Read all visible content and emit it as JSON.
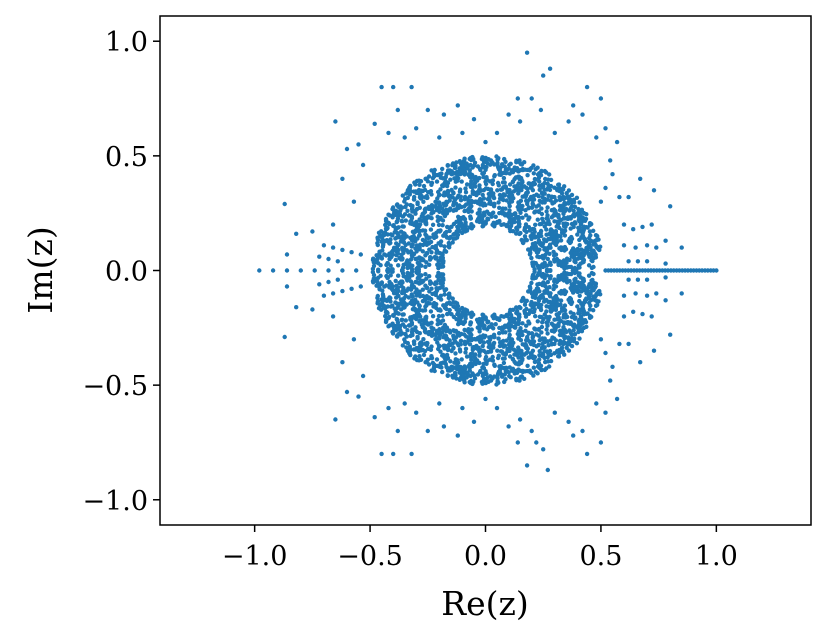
{
  "chart_data": {
    "type": "scatter",
    "title": "",
    "xlabel": "Re(z)",
    "ylabel": "Im(z)",
    "xlim": [
      -1.41,
      1.41
    ],
    "ylim": [
      -1.11,
      1.11
    ],
    "xticks": [
      -1.0,
      -0.5,
      0.0,
      0.5,
      1.0
    ],
    "xtick_labels": [
      "−1.0",
      "−0.5",
      "0.0",
      "0.5",
      "1.0"
    ],
    "yticks": [
      -1.0,
      -0.5,
      0.0,
      0.5,
      1.0
    ],
    "ytick_labels": [
      "−1.0",
      "−0.5",
      "0.0",
      "0.5",
      "1.0"
    ],
    "grid": false,
    "legend": "none",
    "marker_color": "#1f77b4",
    "point_groups": {
      "positive_real_axis": {
        "description_values": "points on Im(z)=0 from Re(z)=0.52 to 1.0",
        "x_start": 0.52,
        "x_end": 1.0,
        "count": 40,
        "y": 0.0
      }
    },
    "series": [
      {
        "points": [
          [
            -0.98,
            0.0
          ],
          [
            -0.92,
            0.0
          ],
          [
            -0.86,
            0.0
          ],
          [
            -0.8,
            0.0
          ],
          [
            -0.74,
            0.0
          ],
          [
            -0.68,
            0.0
          ],
          [
            -0.62,
            0.0
          ],
          [
            -0.56,
            0.0
          ],
          [
            -0.87,
            0.29
          ],
          [
            -0.87,
            -0.29
          ],
          [
            -0.82,
            0.16
          ],
          [
            -0.82,
            -0.16
          ],
          [
            -0.86,
            0.07
          ],
          [
            -0.86,
            -0.07
          ],
          [
            -0.7,
            0.11
          ],
          [
            -0.7,
            -0.11
          ],
          [
            -0.66,
            0.1
          ],
          [
            -0.66,
            -0.1
          ],
          [
            -0.62,
            0.09
          ],
          [
            -0.62,
            -0.09
          ],
          [
            -0.58,
            0.08
          ],
          [
            -0.58,
            -0.08
          ],
          [
            -0.54,
            0.07
          ],
          [
            -0.54,
            -0.07
          ],
          [
            -0.72,
            0.06
          ],
          [
            -0.72,
            -0.06
          ],
          [
            -0.68,
            0.05
          ],
          [
            -0.68,
            -0.05
          ],
          [
            -0.64,
            0.04
          ],
          [
            -0.64,
            -0.04
          ],
          [
            -0.75,
            0.17
          ],
          [
            -0.75,
            -0.17
          ],
          [
            -0.66,
            0.2
          ],
          [
            -0.66,
            -0.2
          ],
          [
            -0.65,
            0.65
          ],
          [
            -0.65,
            -0.65
          ],
          [
            -0.6,
            0.53
          ],
          [
            -0.6,
            -0.53
          ],
          [
            -0.62,
            0.4
          ],
          [
            -0.62,
            -0.4
          ],
          [
            -0.55,
            0.55
          ],
          [
            -0.55,
            -0.55
          ],
          [
            -0.53,
            0.46
          ],
          [
            -0.53,
            -0.46
          ],
          [
            -0.57,
            0.3
          ],
          [
            -0.57,
            -0.3
          ],
          [
            -0.48,
            0.64
          ],
          [
            -0.48,
            -0.64
          ],
          [
            -0.45,
            0.8
          ],
          [
            -0.45,
            -0.8
          ],
          [
            -0.4,
            0.8
          ],
          [
            -0.4,
            -0.8
          ],
          [
            -0.32,
            0.8
          ],
          [
            -0.32,
            -0.8
          ],
          [
            -0.38,
            0.7
          ],
          [
            -0.38,
            -0.7
          ],
          [
            -0.42,
            0.6
          ],
          [
            -0.42,
            -0.6
          ],
          [
            -0.3,
            0.62
          ],
          [
            -0.3,
            -0.62
          ],
          [
            -0.35,
            0.58
          ],
          [
            -0.35,
            -0.58
          ],
          [
            -0.25,
            0.7
          ],
          [
            -0.25,
            -0.7
          ],
          [
            -0.18,
            0.68
          ],
          [
            -0.18,
            -0.68
          ],
          [
            -0.12,
            0.72
          ],
          [
            -0.12,
            -0.72
          ],
          [
            -0.05,
            0.66
          ],
          [
            -0.05,
            -0.66
          ],
          [
            -0.2,
            0.58
          ],
          [
            -0.2,
            -0.58
          ],
          [
            -0.1,
            0.6
          ],
          [
            -0.1,
            -0.6
          ],
          [
            0.0,
            0.56
          ],
          [
            0.0,
            -0.56
          ],
          [
            0.05,
            0.6
          ],
          [
            0.05,
            -0.6
          ],
          [
            0.1,
            0.68
          ],
          [
            0.1,
            -0.68
          ],
          [
            0.14,
            0.75
          ],
          [
            0.14,
            -0.75
          ],
          [
            0.15,
            0.65
          ],
          [
            0.15,
            -0.65
          ],
          [
            0.18,
            0.95
          ],
          [
            0.18,
            -0.85
          ],
          [
            0.25,
            0.85
          ],
          [
            0.27,
            -0.87
          ],
          [
            0.28,
            0.88
          ],
          [
            0.25,
            -0.78
          ],
          [
            0.2,
            0.75
          ],
          [
            0.2,
            -0.7
          ],
          [
            0.24,
            0.7
          ],
          [
            0.22,
            -0.75
          ],
          [
            0.3,
            0.6
          ],
          [
            0.3,
            -0.62
          ],
          [
            0.36,
            0.65
          ],
          [
            0.36,
            -0.66
          ],
          [
            0.38,
            0.72
          ],
          [
            0.38,
            -0.72
          ],
          [
            0.42,
            0.68
          ],
          [
            0.42,
            -0.7
          ],
          [
            0.5,
            0.75
          ],
          [
            0.5,
            -0.75
          ],
          [
            0.52,
            0.62
          ],
          [
            0.52,
            -0.62
          ],
          [
            0.48,
            0.58
          ],
          [
            0.48,
            -0.58
          ],
          [
            0.54,
            0.48
          ],
          [
            0.54,
            -0.48
          ],
          [
            0.55,
            0.42
          ],
          [
            0.55,
            -0.42
          ],
          [
            0.58,
            0.32
          ],
          [
            0.58,
            -0.32
          ],
          [
            0.52,
            0.36
          ],
          [
            0.52,
            -0.36
          ],
          [
            0.5,
            0.3
          ],
          [
            0.5,
            -0.3
          ],
          [
            0.6,
            0.2
          ],
          [
            0.6,
            -0.2
          ],
          [
            0.64,
            0.18
          ],
          [
            0.64,
            -0.18
          ],
          [
            0.68,
            0.19
          ],
          [
            0.68,
            -0.19
          ],
          [
            0.72,
            0.2
          ],
          [
            0.72,
            -0.2
          ],
          [
            0.6,
            0.11
          ],
          [
            0.6,
            -0.11
          ],
          [
            0.65,
            0.1
          ],
          [
            0.65,
            -0.1
          ],
          [
            0.7,
            0.11
          ],
          [
            0.7,
            -0.11
          ],
          [
            0.74,
            0.1
          ],
          [
            0.74,
            -0.1
          ],
          [
            0.62,
            0.04
          ],
          [
            0.62,
            -0.04
          ],
          [
            0.66,
            0.04
          ],
          [
            0.66,
            -0.04
          ],
          [
            0.7,
            0.04
          ],
          [
            0.7,
            -0.04
          ],
          [
            0.78,
            0.03
          ],
          [
            0.78,
            -0.03
          ],
          [
            0.73,
            0.35
          ],
          [
            0.73,
            -0.35
          ],
          [
            0.67,
            0.4
          ],
          [
            0.67,
            -0.4
          ],
          [
            0.8,
            0.28
          ],
          [
            0.8,
            -0.28
          ],
          [
            0.85,
            0.1
          ],
          [
            0.85,
            -0.1
          ],
          [
            0.78,
            0.13
          ],
          [
            0.78,
            -0.13
          ],
          [
            0.62,
            0.32
          ],
          [
            0.62,
            -0.32
          ],
          [
            0.57,
            0.56
          ],
          [
            0.57,
            -0.56
          ],
          [
            0.44,
            0.8
          ],
          [
            0.44,
            -0.8
          ]
        ]
      }
    ]
  }
}
